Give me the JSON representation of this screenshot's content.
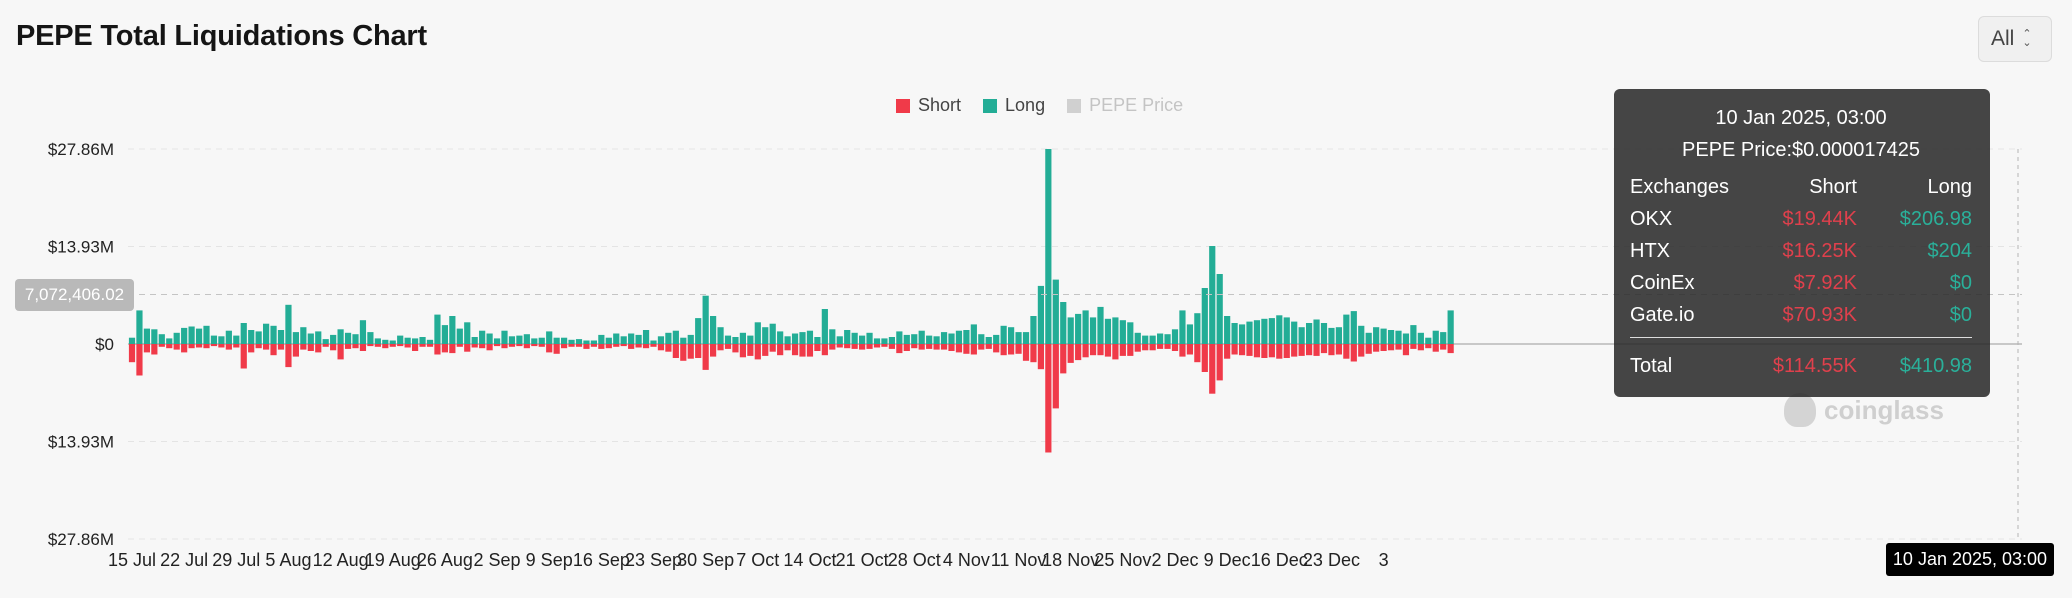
{
  "header": {
    "title": "PEPE Total Liquidations Chart",
    "range": "All"
  },
  "legend": [
    {
      "label": "Short",
      "color": "#f03a49"
    },
    {
      "label": "Long",
      "color": "#23ad96"
    },
    {
      "label": "PEPE Price",
      "color": "#c8c8c8"
    }
  ],
  "crosshair": {
    "y_value": "7,072,406.02",
    "x_label": "10 Jan 2025, 03:00"
  },
  "watermark": "coinglass",
  "tooltip": {
    "date": "10 Jan 2025, 03:00",
    "price": "PEPE Price:$0.000017425",
    "headers": [
      "Exchanges",
      "Short",
      "Long"
    ],
    "rows": [
      {
        "exchange": "OKX",
        "short": "$19.44K",
        "long": "$206.98"
      },
      {
        "exchange": "HTX",
        "short": "$16.25K",
        "long": "$204"
      },
      {
        "exchange": "CoinEx",
        "short": "$7.92K",
        "long": "$0"
      },
      {
        "exchange": "Gate.io",
        "short": "$70.93K",
        "long": "$0"
      }
    ],
    "total": {
      "label": "Total",
      "short": "$114.55K",
      "long": "$410.98"
    }
  },
  "chart_data": {
    "type": "bar",
    "title": "PEPE Total Liquidations Chart",
    "ylim": [
      -27860000,
      27860000
    ],
    "y_ticks": [
      {
        "value": 27860000,
        "label": "$27.86M"
      },
      {
        "value": 13930000,
        "label": "$13.93M"
      },
      {
        "value": 0,
        "label": "$0"
      },
      {
        "value": -13930000,
        "label": "$13.93M"
      },
      {
        "value": -27860000,
        "label": "$27.86M"
      }
    ],
    "x_ticks": [
      {
        "index": 0,
        "label": "15 Jul"
      },
      {
        "index": 7,
        "label": "22 Jul"
      },
      {
        "index": 14,
        "label": "29 Jul"
      },
      {
        "index": 21,
        "label": "5 Aug"
      },
      {
        "index": 28,
        "label": "12 Aug"
      },
      {
        "index": 35,
        "label": "19 Aug"
      },
      {
        "index": 42,
        "label": "26 Aug"
      },
      {
        "index": 49,
        "label": "2 Sep"
      },
      {
        "index": 56,
        "label": "9 Sep"
      },
      {
        "index": 63,
        "label": "16 Sep"
      },
      {
        "index": 70,
        "label": "23 Sep"
      },
      {
        "index": 77,
        "label": "30 Sep"
      },
      {
        "index": 84,
        "label": "7 Oct"
      },
      {
        "index": 91,
        "label": "14 Oct"
      },
      {
        "index": 98,
        "label": "21 Oct"
      },
      {
        "index": 105,
        "label": "28 Oct"
      },
      {
        "index": 112,
        "label": "4 Nov"
      },
      {
        "index": 119,
        "label": "11 Nov"
      },
      {
        "index": 126,
        "label": "18 Nov"
      },
      {
        "index": 133,
        "label": "25 Nov"
      },
      {
        "index": 140,
        "label": "2 Dec"
      },
      {
        "index": 147,
        "label": "9 Dec"
      },
      {
        "index": 154,
        "label": "16 Dec"
      },
      {
        "index": 161,
        "label": "23 Dec"
      },
      {
        "index": 168,
        "label": "3"
      }
    ],
    "series": [
      {
        "name": "Long",
        "color": "#23ad96",
        "values": [
          0.9,
          4.8,
          2.2,
          2.1,
          1.4,
          0.8,
          1.6,
          2.3,
          2.5,
          2.2,
          2.6,
          1.2,
          1.1,
          1.9,
          1.2,
          3.0,
          2.0,
          1.8,
          2.9,
          2.6,
          2.0,
          5.6,
          1.7,
          2.4,
          1.5,
          1.8,
          0.7,
          1.3,
          2.1,
          1.6,
          1.4,
          3.4,
          1.7,
          0.8,
          0.6,
          0.5,
          1.2,
          0.9,
          0.8,
          1.0,
          0.6,
          4.2,
          2.7,
          4.0,
          2.2,
          3.1,
          1.0,
          1.9,
          1.5,
          0.8,
          1.9,
          1.1,
          1.2,
          1.4,
          0.8,
          0.9,
          1.8,
          0.9,
          0.9,
          0.6,
          0.7,
          0.5,
          0.5,
          1.3,
          0.9,
          1.5,
          1.1,
          1.5,
          1.3,
          2.0,
          0.5,
          1.1,
          1.6,
          1.9,
          0.9,
          1.3,
          3.7,
          6.9,
          4.0,
          2.4,
          1.2,
          1.0,
          1.6,
          1.2,
          3.1,
          2.4,
          2.9,
          1.8,
          1.1,
          1.5,
          1.7,
          1.9,
          1.0,
          5.0,
          2.1,
          1.1,
          2.0,
          1.6,
          1.2,
          1.6,
          0.8,
          0.8,
          1.0,
          1.8,
          1.3,
          1.4,
          1.9,
          1.2,
          1.1,
          1.7,
          1.5,
          1.9,
          2.0,
          2.8,
          1.4,
          1.0,
          1.3,
          2.6,
          2.4,
          1.7,
          1.7,
          4.0,
          8.3,
          27.86,
          9.2,
          6.0,
          3.8,
          4.3,
          4.8,
          3.8,
          5.3,
          3.6,
          3.8,
          3.4,
          3.1,
          1.6,
          1.2,
          1.2,
          1.5,
          1.4,
          2.1,
          4.8,
          2.8,
          4.4,
          8.0,
          14.0,
          10.0,
          4.0,
          3.0,
          2.8,
          3.2,
          3.4,
          3.6,
          3.7,
          4.1,
          3.8,
          3.2,
          2.4,
          3.0,
          3.5,
          3.0,
          2.3,
          2.4,
          4.2,
          4.7,
          2.6,
          1.6,
          2.4,
          2.2,
          2.0,
          1.9,
          1.5,
          2.7,
          1.6,
          0.9,
          1.9,
          1.7,
          4.8
        ]
      },
      {
        "name": "Short",
        "color": "#f03a49",
        "values": [
          2.6,
          4.5,
          1.2,
          1.5,
          0.4,
          0.6,
          0.8,
          1.2,
          0.6,
          0.5,
          0.6,
          0.3,
          0.5,
          0.8,
          0.5,
          3.5,
          1.2,
          0.6,
          0.8,
          1.6,
          0.8,
          3.3,
          1.8,
          0.8,
          1.0,
          1.2,
          0.4,
          0.9,
          2.2,
          0.7,
          0.6,
          1.0,
          0.3,
          0.4,
          0.6,
          0.4,
          0.3,
          0.5,
          1.0,
          0.4,
          0.4,
          1.5,
          1.2,
          1.3,
          0.4,
          1.1,
          0.5,
          0.6,
          0.9,
          0.3,
          0.6,
          0.4,
          0.3,
          0.6,
          0.3,
          0.4,
          1.2,
          1.4,
          0.6,
          0.4,
          0.4,
          0.7,
          0.4,
          0.7,
          0.6,
          0.4,
          0.3,
          0.7,
          0.5,
          0.6,
          0.4,
          0.9,
          1.1,
          2.0,
          2.4,
          2.1,
          2.0,
          3.7,
          1.8,
          0.9,
          0.7,
          1.2,
          1.9,
          1.7,
          2.2,
          1.7,
          1.1,
          1.6,
          0.9,
          1.6,
          1.8,
          1.8,
          1.0,
          1.6,
          0.8,
          0.5,
          0.6,
          0.7,
          0.8,
          0.7,
          0.5,
          0.4,
          0.7,
          1.3,
          1.0,
          0.6,
          0.8,
          0.7,
          0.8,
          0.8,
          1.0,
          1.2,
          1.4,
          1.5,
          0.8,
          0.7,
          1.2,
          1.6,
          1.5,
          1.4,
          2.4,
          2.6,
          3.6,
          15.5,
          9.2,
          4.2,
          2.7,
          2.3,
          1.9,
          1.6,
          1.6,
          1.8,
          2.2,
          1.7,
          1.7,
          1.1,
          0.9,
          0.9,
          0.7,
          0.7,
          1.0,
          1.8,
          1.5,
          2.6,
          4.0,
          7.1,
          5.2,
          2.1,
          1.5,
          1.6,
          1.7,
          1.9,
          2.0,
          1.9,
          2.1,
          2.0,
          1.8,
          1.7,
          1.6,
          1.7,
          1.3,
          1.6,
          1.5,
          2.1,
          2.5,
          1.8,
          1.4,
          1.1,
          1.0,
          0.9,
          0.8,
          1.6,
          0.7,
          0.9,
          0.6,
          1.1,
          0.8,
          1.3
        ]
      }
    ],
    "units_note": "values in $M; negative axis side shows Short",
    "highlight_index": 189
  }
}
